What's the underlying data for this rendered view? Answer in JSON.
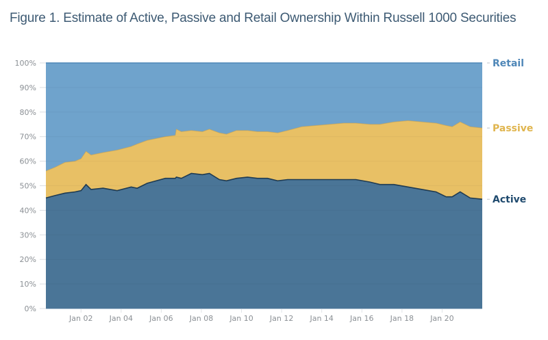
{
  "chart_data": {
    "type": "area",
    "stacked": true,
    "title": "Figure 1. Estimate of Active, Passive and Retail Ownership Within Russell 1000 Securities",
    "xlabel": "",
    "ylabel": "",
    "ylim": [
      0,
      100
    ],
    "xlim": [
      2000.25,
      2022.0
    ],
    "y_ticks": [
      "0%",
      "10%",
      "20%",
      "30%",
      "40%",
      "50%",
      "60%",
      "70%",
      "80%",
      "90%",
      "100%"
    ],
    "y_tick_values": [
      0,
      10,
      20,
      30,
      40,
      50,
      60,
      70,
      80,
      90,
      100
    ],
    "x_ticks": [
      "Jan 02",
      "Jan 04",
      "Jan 06",
      "Jan 08",
      "Jan 10",
      "Jan 12",
      "Jan 14",
      "Jan 16",
      "Jan 18",
      "Jan 20"
    ],
    "x_tick_values": [
      2002,
      2004,
      2006,
      2008,
      2010,
      2012,
      2014,
      2016,
      2018,
      2020
    ],
    "grid": true,
    "legend_placement": "right (end-of-series labels)",
    "x": [
      2000.25,
      2000.7,
      2001.2,
      2001.7,
      2002.0,
      2002.25,
      2002.5,
      2003.1,
      2003.8,
      2004.5,
      2004.8,
      2005.3,
      2006.2,
      2006.7,
      2006.75,
      2007.0,
      2007.5,
      2008.05,
      2008.4,
      2008.9,
      2009.25,
      2009.75,
      2010.3,
      2010.8,
      2011.3,
      2011.8,
      2012.3,
      2013.0,
      2013.7,
      2014.4,
      2015.1,
      2015.7,
      2016.4,
      2016.9,
      2017.6,
      2018.3,
      2019.0,
      2019.7,
      2020.2,
      2020.5,
      2020.9,
      2021.4,
      2022.0
    ],
    "series": [
      {
        "name": "Active",
        "values": [
          45,
          46,
          47,
          47.5,
          48,
          50.5,
          48.5,
          49,
          48,
          49.5,
          49,
          51,
          53,
          53,
          53.5,
          53,
          55,
          54.5,
          55,
          52.5,
          52,
          53,
          53.5,
          53,
          53,
          52,
          52.5,
          52.5,
          52.5,
          52.5,
          52.5,
          52.5,
          51.5,
          50.5,
          50.5,
          49.5,
          48.5,
          47.5,
          45.5,
          45.5,
          47.5,
          45,
          44.5
        ]
      },
      {
        "name": "Passive",
        "values": [
          11,
          11.5,
          12.5,
          12.5,
          13,
          13.5,
          14,
          14.5,
          16.5,
          16.5,
          18,
          17.5,
          17,
          17.5,
          19.5,
          19,
          17.5,
          17.5,
          18,
          19,
          19,
          19.5,
          19,
          19,
          19,
          19.5,
          20,
          21.5,
          22,
          22.5,
          23,
          23,
          23.5,
          24.5,
          25.5,
          27,
          27.5,
          28,
          29,
          28.5,
          28.5,
          29,
          29
        ]
      },
      {
        "name": "Retail",
        "values": [
          44,
          42.5,
          40.5,
          40,
          39,
          36,
          37.5,
          36.5,
          35.5,
          34,
          33,
          31.5,
          30,
          29.5,
          27,
          28,
          27.5,
          28,
          27,
          28.5,
          29,
          27.5,
          27.5,
          28,
          28,
          28.5,
          27.5,
          26,
          25.5,
          25,
          24.5,
          24.5,
          25,
          25,
          24,
          23.5,
          24,
          24.5,
          25.5,
          26,
          24,
          26,
          26.5
        ]
      }
    ],
    "colors": {
      "Active": "#4a7597",
      "Passive": "#e8c065",
      "Retail": "#6fa3cc",
      "active_line": "#1e3a52",
      "label_active": "#1f4a6e",
      "label_passive": "#e0b54e",
      "label_retail": "#4f87b8"
    },
    "end_labels": [
      "Retail",
      "Passive",
      "Active"
    ]
  }
}
